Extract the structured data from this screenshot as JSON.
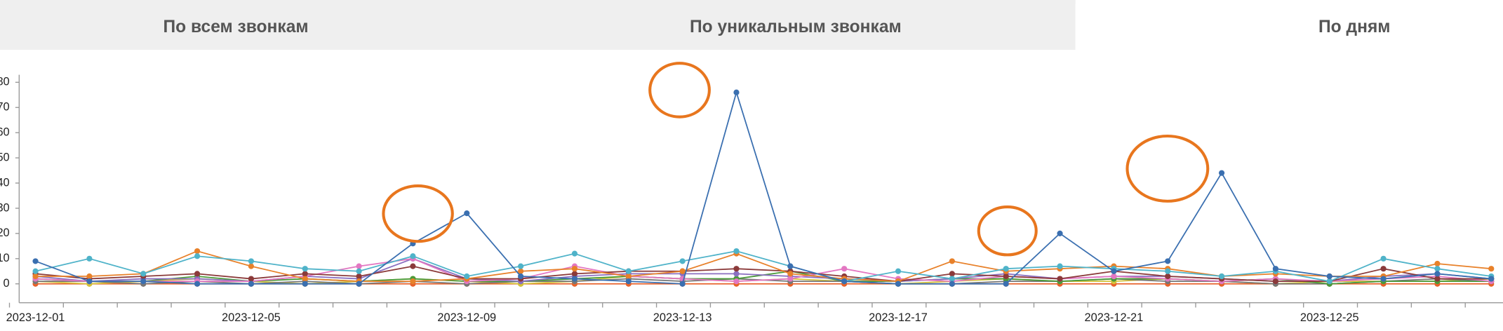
{
  "tabs": [
    "По всем звонкам",
    "По уникальным звонкам",
    "По дням"
  ],
  "chart_data": {
    "type": "line",
    "categories": [
      "2023-12-01",
      null,
      null,
      null,
      "2023-12-05",
      null,
      null,
      null,
      "2023-12-09",
      null,
      null,
      null,
      "2023-12-13",
      null,
      null,
      null,
      "2023-12-17",
      null,
      null,
      null,
      "2023-12-21",
      null,
      null,
      null,
      "2023-12-25",
      null,
      null,
      null
    ],
    "ylim": [
      -7.5,
      83
    ],
    "yticks": [
      0,
      10,
      20,
      30,
      40,
      50,
      60,
      70,
      80
    ],
    "series": [
      {
        "color": "#e8622a",
        "values": [
          0,
          0,
          0,
          0,
          0,
          0,
          0,
          0,
          0,
          0,
          0,
          0,
          0,
          0,
          0,
          0,
          0,
          0,
          0,
          0,
          0,
          0,
          0,
          0,
          0,
          0,
          0,
          0
        ]
      },
      {
        "color": "#d4c43a",
        "values": [
          1,
          0,
          1,
          2,
          1,
          0,
          1,
          2,
          1,
          0,
          1,
          3,
          2,
          1,
          2,
          1,
          0,
          1,
          2,
          1,
          1,
          2,
          1,
          0,
          1,
          1,
          1,
          2
        ]
      },
      {
        "color": "#777777",
        "values": [
          1,
          1,
          0,
          1,
          0,
          1,
          0,
          1,
          0,
          1,
          1,
          2,
          1,
          2,
          1,
          1,
          0,
          0,
          1,
          1,
          2,
          1,
          1,
          0,
          0,
          1,
          2,
          1
        ]
      },
      {
        "color": "#4a9a3a",
        "values": [
          2,
          1,
          1,
          3,
          1,
          2,
          1,
          2,
          1,
          1,
          2,
          3,
          2,
          2,
          5,
          1,
          1,
          2,
          2,
          1,
          2,
          2,
          1,
          2,
          0,
          1,
          1,
          1
        ]
      },
      {
        "color": "#8a6fc0",
        "values": [
          3,
          1,
          2,
          2,
          1,
          3,
          2,
          10,
          2,
          1,
          3,
          4,
          4,
          4,
          3,
          2,
          1,
          2,
          4,
          2,
          3,
          3,
          2,
          1,
          1,
          3,
          4,
          2
        ]
      },
      {
        "color": "#e377c2",
        "values": [
          2,
          1,
          1,
          1,
          1,
          3,
          7,
          10,
          1,
          2,
          7,
          3,
          2,
          1,
          2,
          6,
          2,
          1,
          3,
          2,
          3,
          2,
          1,
          2,
          1,
          2,
          3,
          1
        ]
      },
      {
        "color": "#8b3a3a",
        "values": [
          4,
          2,
          3,
          4,
          2,
          4,
          3,
          7,
          2,
          2,
          4,
          5,
          5,
          6,
          5,
          3,
          1,
          4,
          3,
          2,
          5,
          3,
          2,
          1,
          1,
          6,
          2,
          2
        ]
      },
      {
        "color": "#e8812a",
        "values": [
          3,
          3,
          4,
          13,
          7,
          2,
          1,
          1,
          2,
          5,
          6,
          3,
          5,
          12,
          4,
          2,
          1,
          9,
          5,
          6,
          7,
          6,
          3,
          4,
          3,
          3,
          8,
          6
        ]
      },
      {
        "color": "#4fb3c9",
        "values": [
          5,
          10,
          4,
          11,
          9,
          6,
          5,
          11,
          3,
          7,
          12,
          5,
          9,
          13,
          7,
          1,
          5,
          2,
          6,
          7,
          6,
          5,
          3,
          5,
          1,
          10,
          6,
          3
        ]
      },
      {
        "color": "#3a6fb0",
        "values": [
          9,
          1,
          1,
          0,
          0,
          0,
          0,
          16,
          28,
          3,
          2,
          1,
          0,
          76,
          7,
          1,
          0,
          0,
          0,
          20,
          5,
          9,
          44,
          6,
          3,
          2,
          4,
          2
        ]
      }
    ]
  }
}
